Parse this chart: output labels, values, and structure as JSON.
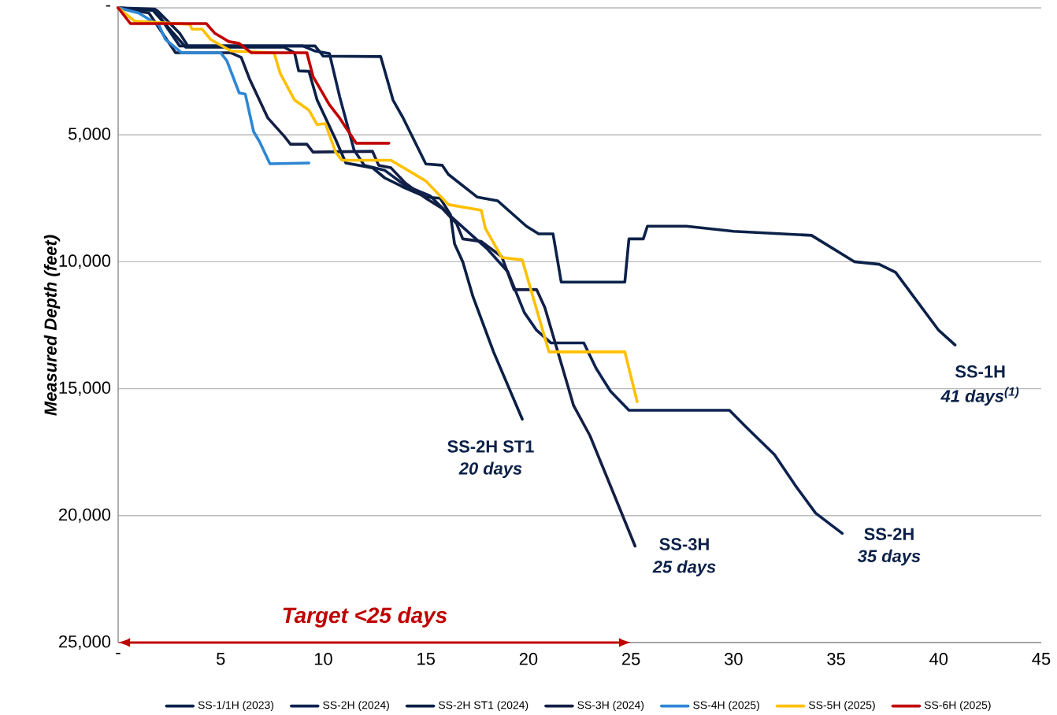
{
  "chart_data": {
    "type": "line",
    "ylabel": "Measured Depth (feet)",
    "xlim": [
      0,
      45
    ],
    "ylim": [
      25000,
      0
    ],
    "xticks": [
      {
        "value": 0,
        "label": "-"
      },
      5,
      10,
      15,
      20,
      25,
      30,
      35,
      40,
      45
    ],
    "yticks": [
      {
        "value": 0,
        "label": "-"
      },
      {
        "value": 5000,
        "label": "5,000"
      },
      {
        "value": 10000,
        "label": "10,000"
      },
      {
        "value": 15000,
        "label": "15,000"
      },
      {
        "value": 20000,
        "label": "20,000"
      },
      {
        "value": 25000,
        "label": "25,000"
      }
    ],
    "grid": "y",
    "legend": "bottom",
    "series": [
      {
        "name": "SS-1/1H (2023)",
        "color": "#0c2148",
        "x": [
          0,
          1.9,
          3.0,
          3.4,
          9.6,
          10.0,
          12.8,
          13.4,
          13.9,
          15.0,
          15.8,
          16.1,
          17.5,
          18.5,
          19.9,
          20.5,
          21.2,
          21.6,
          24.7,
          24.9,
          25.6,
          25.8,
          27.7,
          30.0,
          33.8,
          35.9,
          37.1,
          37.9,
          40.0,
          40.8
        ],
        "values": [
          0,
          100,
          1000,
          1500,
          1500,
          1900,
          1920,
          3630,
          4350,
          6150,
          6200,
          6560,
          7450,
          7600,
          8600,
          8900,
          8900,
          10800,
          10800,
          9100,
          9100,
          8600,
          8600,
          8800,
          8960,
          10000,
          10100,
          10420,
          12700,
          13280
        ]
      },
      {
        "name": "SS-2H (2024)",
        "color": "#0d2250",
        "x": [
          0,
          1.8,
          2.4,
          3.0,
          9.0,
          9.6,
          10.3,
          10.8,
          11.5,
          12.0,
          13.0,
          14.0,
          15.2,
          16.2,
          17.3,
          18.0,
          19.0,
          19.8,
          20.4,
          21.1,
          22.7,
          23.3,
          24.0,
          24.9,
          29.8,
          30.6,
          32.0,
          33.0,
          34.0,
          35.3
        ],
        "values": [
          0,
          50,
          800,
          1500,
          1500,
          1700,
          1800,
          3500,
          5600,
          6200,
          6400,
          7000,
          7400,
          8200,
          9000,
          9500,
          10400,
          12000,
          12700,
          13200,
          13200,
          14200,
          15100,
          15850,
          15850,
          16500,
          17600,
          18800,
          19900,
          20700
        ]
      },
      {
        "name": "SS-2H ST1 (2024)",
        "color": "#0a1f44",
        "x": [
          0,
          1.7,
          3.3,
          8.1,
          8.6,
          8.8,
          9.3,
          9.7,
          10.6,
          11.1,
          12.4,
          13.0,
          14.0,
          15.0,
          15.7,
          16.2,
          16.4,
          16.8,
          17.3,
          18.3,
          19.7
        ],
        "values": [
          0,
          100,
          1550,
          1550,
          1770,
          2480,
          2500,
          3630,
          5180,
          6110,
          6300,
          6700,
          7100,
          7450,
          7500,
          8150,
          9300,
          10000,
          11380,
          13550,
          16200
        ]
      },
      {
        "name": "SS-3H (2024)",
        "color": "#141f45",
        "x": [
          0,
          1.5,
          2.8,
          5.5,
          6.0,
          6.4,
          7.3,
          8.1,
          8.4,
          9.2,
          9.5,
          12.4,
          12.7,
          13.3,
          14.0,
          15.0,
          15.8,
          16.5,
          16.8,
          17.7,
          18.7,
          19.3,
          20.4,
          20.8,
          22.2,
          23.0,
          25.2
        ],
        "values": [
          0,
          200,
          1770,
          1770,
          1950,
          2790,
          4340,
          5060,
          5370,
          5370,
          5680,
          5650,
          6200,
          6300,
          6900,
          7500,
          7900,
          8500,
          9100,
          9200,
          9800,
          11100,
          11100,
          11800,
          15660,
          16850,
          21200
        ]
      },
      {
        "name": "SS-4H (2025)",
        "color": "#2e86d4",
        "x": [
          0,
          1.0,
          2.0,
          2.3,
          3.1,
          5.0,
          5.3,
          5.9,
          6.2,
          6.6,
          6.9,
          7.4,
          9.3
        ],
        "values": [
          0,
          200,
          700,
          1240,
          1770,
          1770,
          2080,
          3350,
          3400,
          4870,
          5280,
          6140,
          6110
        ]
      },
      {
        "name": "SS-5H (2025)",
        "color": "#ffc000",
        "x": [
          0,
          0.8,
          3.5,
          3.6,
          4.1,
          4.5,
          5.5,
          7.6,
          7.9,
          8.6,
          9.3,
          9.7,
          10.1,
          10.6,
          10.9,
          13.3,
          15.0,
          16.1,
          17.7,
          17.9,
          18.7,
          19.7,
          21.0,
          24.7,
          25.3
        ],
        "values": [
          0,
          520,
          650,
          840,
          840,
          1240,
          1700,
          1770,
          2580,
          3630,
          4030,
          4600,
          4560,
          5680,
          6000,
          6000,
          6820,
          7750,
          7970,
          8680,
          9830,
          9930,
          13550,
          13550,
          15510
        ]
      },
      {
        "name": "SS-6H (2025)",
        "color": "#c00000",
        "x": [
          0,
          0.6,
          4.3,
          4.7,
          5.4,
          5.9,
          6.5,
          9.2,
          9.5,
          10.3,
          10.8,
          11.6,
          13.2
        ],
        "values": [
          0,
          620,
          620,
          990,
          1330,
          1400,
          1770,
          1770,
          2700,
          3820,
          4340,
          5330,
          5330
        ]
      }
    ],
    "annotations": [
      "Target <25 days",
      "SS-2H ST1",
      "20 days",
      "SS-3H",
      "25 days",
      "SS-2H",
      "35 days",
      "SS-1H",
      "41 days$^{(1)}$"
    ]
  }
}
